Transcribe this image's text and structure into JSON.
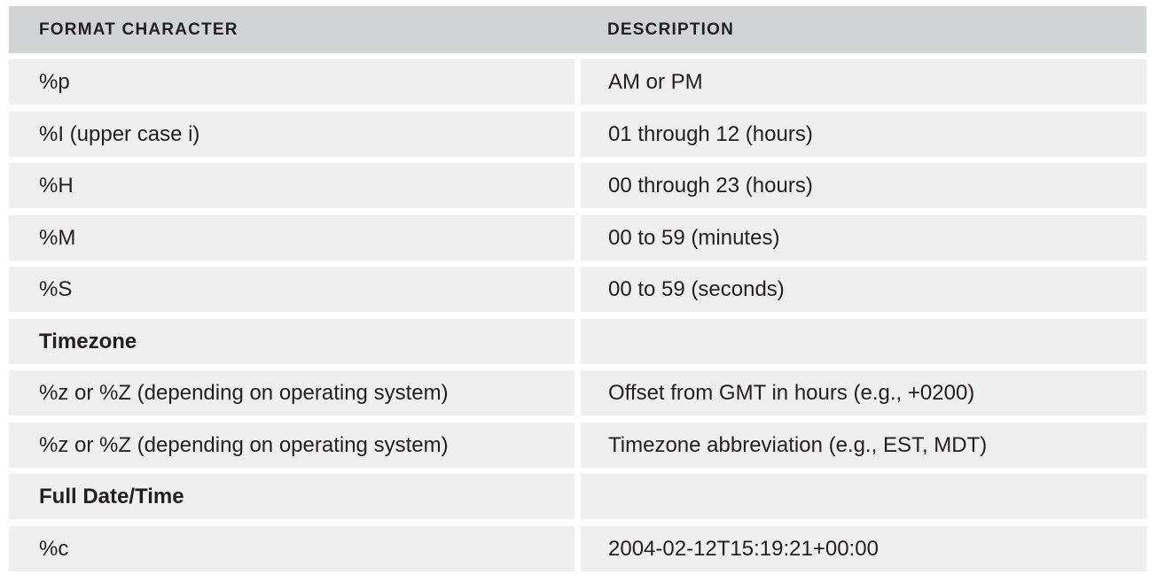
{
  "table": {
    "headers": [
      "FORMAT CHARACTER",
      "DESCRIPTION"
    ],
    "rows": [
      {
        "format": "%p",
        "description": "AM or PM",
        "section": false
      },
      {
        "format": "%I (upper case i)",
        "description": "01 through 12 (hours)",
        "section": false
      },
      {
        "format": "%H",
        "description": "00 through 23 (hours)",
        "section": false
      },
      {
        "format": "%M",
        "description": "00 to 59 (minutes)",
        "section": false
      },
      {
        "format": "%S",
        "description": "00 to 59 (seconds)",
        "section": false
      },
      {
        "format": "Timezone",
        "description": "",
        "section": true
      },
      {
        "format": "%z or %Z (depending on operating system)",
        "description": "Offset from GMT in hours (e.g., +0200)",
        "section": false
      },
      {
        "format": "%z or %Z (depending on operating system)",
        "description": "Timezone abbreviation (e.g., EST, MDT)",
        "section": false
      },
      {
        "format": "Full Date/Time",
        "description": "",
        "section": true
      },
      {
        "format": "%c",
        "description": "2004-02-12T15:19:21+00:00",
        "section": false
      }
    ]
  }
}
